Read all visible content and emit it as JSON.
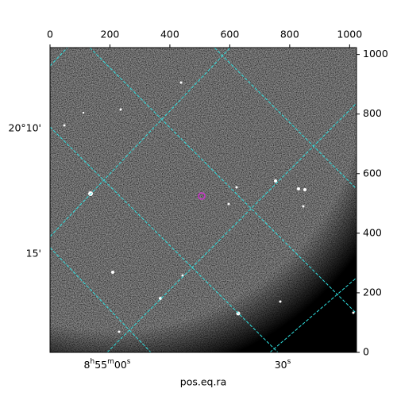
{
  "chart_data": {
    "type": "image",
    "xlabel": "pos.eq.ra",
    "xlim": [
      0,
      1023
    ],
    "ylim": [
      0,
      1023
    ],
    "xticks": [
      0,
      200,
      400,
      600,
      800,
      1000
    ],
    "yticks": [
      0,
      200,
      400,
      600,
      800,
      1000
    ],
    "ra_ticks": [
      [
        "8",
        "h",
        "55",
        "m",
        "00",
        "s"
      ],
      [
        "30",
        "s"
      ]
    ],
    "dec_ticks": [
      "20°10'",
      "15'"
    ],
    "marker_color": "#cc33cc",
    "grid_color": "#2fe0e0"
  }
}
